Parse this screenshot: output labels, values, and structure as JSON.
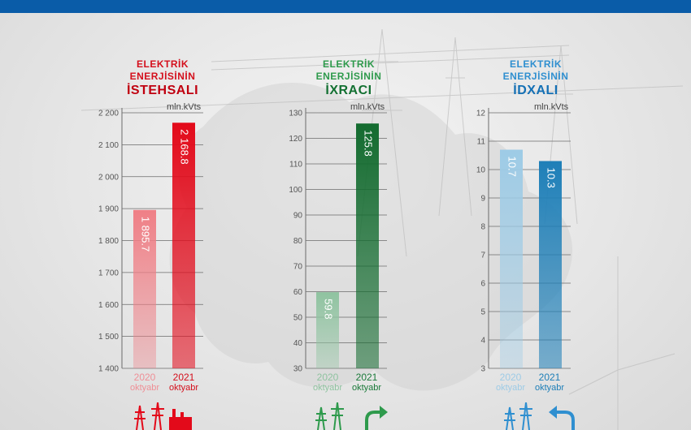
{
  "colors": {
    "topbar": "#0a5ca8",
    "production": [
      "#ef7f86",
      "#e30a1a"
    ],
    "export": [
      "#8fc3a0",
      "#136b2f"
    ],
    "import": [
      "#9dcbe6",
      "#1e7fb8"
    ],
    "cat_prev": [
      "#ef8f96",
      "#8fc3a0",
      "#9dcbe6"
    ],
    "cat_curr": [
      "#d40f1c",
      "#1b7a3a",
      "#1e7fb8"
    ]
  },
  "icons": [
    "power-tower-icon",
    "arrow-export-icon",
    "arrow-import-icon"
  ],
  "chart_data": [
    {
      "type": "bar",
      "title": [
        "ELEKTRİK",
        "ENERJİSİNİN",
        "İSTEHSALI"
      ],
      "unit": "mln.kVts",
      "categories": [
        {
          "year": "2020",
          "month": "oktyabr"
        },
        {
          "year": "2021",
          "month": "oktyabr"
        }
      ],
      "values": [
        1895.7,
        2168.8
      ],
      "value_labels": [
        "1 895.7",
        "2 168.8"
      ],
      "ylim": [
        1400,
        2200
      ],
      "yticks": [
        1400,
        1500,
        1600,
        1700,
        1800,
        1900,
        2000,
        2100,
        2200
      ],
      "ytick_labels": [
        "1 400",
        "1 500",
        "1 600",
        "1 700",
        "1 800",
        "1 900",
        "2 000",
        "2 100",
        "2 200"
      ],
      "grid": true,
      "color": "#d40f1c"
    },
    {
      "type": "bar",
      "title": [
        "ELEKTRİK",
        "ENERJİSİNİN",
        "İXRACI"
      ],
      "unit": "mln.kVts",
      "categories": [
        {
          "year": "2020",
          "month": "oktyabr"
        },
        {
          "year": "2021",
          "month": "oktyabr"
        }
      ],
      "values": [
        59.8,
        125.8
      ],
      "value_labels": [
        "59.8",
        "125.8"
      ],
      "ylim": [
        30,
        130
      ],
      "yticks": [
        30,
        40,
        50,
        60,
        70,
        80,
        90,
        100,
        110,
        120,
        130
      ],
      "ytick_labels": [
        "30",
        "40",
        "50",
        "60",
        "70",
        "80",
        "90",
        "100",
        "110",
        "120",
        "130"
      ],
      "grid": true,
      "color": "#1b7a3a"
    },
    {
      "type": "bar",
      "title": [
        "ELEKTRİK",
        "ENERJİSİNİN",
        "İDXALI"
      ],
      "unit": "mln.kVts",
      "categories": [
        {
          "year": "2020",
          "month": "oktyabr"
        },
        {
          "year": "2021",
          "month": "oktyabr"
        }
      ],
      "values": [
        10.7,
        10.3
      ],
      "value_labels": [
        "10.7",
        "10.3"
      ],
      "ylim": [
        3,
        12
      ],
      "yticks": [
        3,
        4,
        5,
        6,
        7,
        8,
        9,
        10,
        11,
        12
      ],
      "ytick_labels": [
        "3",
        "4",
        "5",
        "6",
        "7",
        "8",
        "9",
        "10",
        "11",
        "12"
      ],
      "grid": true,
      "color": "#1e7fb8"
    }
  ]
}
